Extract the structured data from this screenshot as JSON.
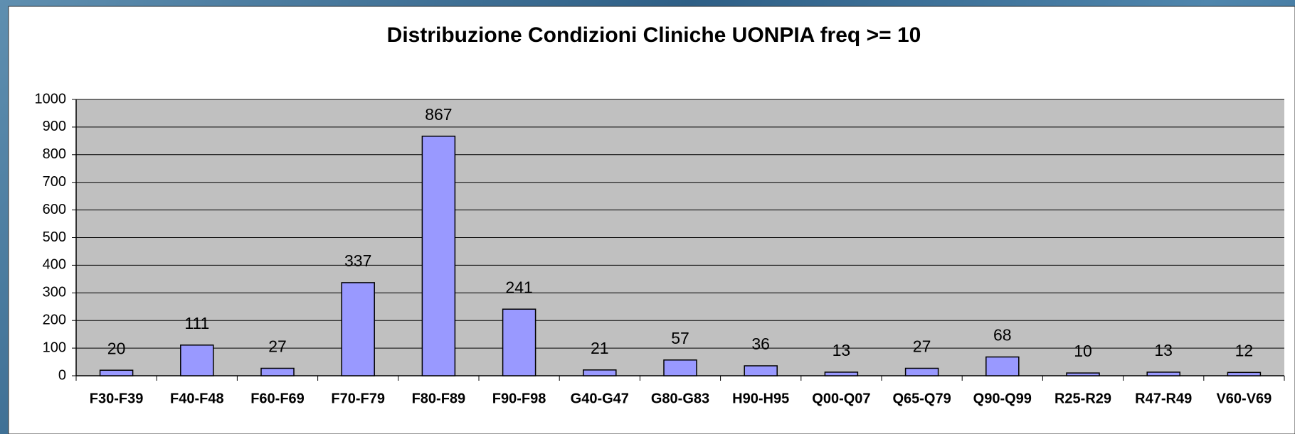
{
  "chart_data": {
    "type": "bar",
    "title": "Distribuzione Condizioni Cliniche UONPIA freq >= 10",
    "categories": [
      "F30-F39",
      "F40-F48",
      "F60-F69",
      "F70-F79",
      "F80-F89",
      "F90-F98",
      "G40-G47",
      "G80-G83",
      "H90-H95",
      "Q00-Q07",
      "Q65-Q79",
      "Q90-Q99",
      "R25-R29",
      "R47-R49",
      "V60-V69"
    ],
    "values": [
      20,
      111,
      27,
      337,
      867,
      241,
      21,
      57,
      36,
      13,
      27,
      68,
      10,
      13,
      12
    ],
    "color": "#9999ff",
    "ylim": [
      0,
      1000
    ],
    "yticks": [
      0,
      100,
      200,
      300,
      400,
      500,
      600,
      700,
      800,
      900,
      1000
    ],
    "grid": true
  }
}
